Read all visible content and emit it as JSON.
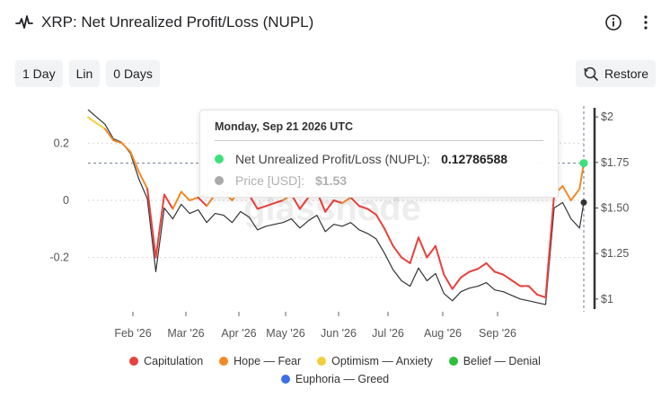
{
  "header": {
    "title": "XRP: Net Unrealized Profit/Loss (NUPL)",
    "icon": "pulse-icon"
  },
  "toolbar": {
    "interval": "1 Day",
    "scale": "Lin",
    "offset": "0 Days",
    "restore": "Restore"
  },
  "watermark": "glassnode",
  "tooltip": {
    "date": "Monday, Sep 21 2026 UTC",
    "rows": [
      {
        "label": "Net Unrealized Profit/Loss (NUPL):",
        "value": "0.12786588",
        "color": "#3de07a"
      },
      {
        "label": "Price [USD]:",
        "value": "$1.53",
        "color": "#aaaaaa"
      }
    ]
  },
  "colors": {
    "capitulation": "#e8413c",
    "hope_fear": "#f08a26",
    "optimism_anxiety": "#f2cf3a",
    "belief_denial": "#2ebf3a",
    "euphoria_greed": "#3e6ee8",
    "price": "#333333"
  },
  "chart_data": {
    "type": "line",
    "x_ticks": [
      "Feb '26",
      "Mar '26",
      "Apr '26",
      "May '26",
      "Jun '26",
      "Jul '26",
      "Aug '26",
      "Sep '26"
    ],
    "y_left": {
      "ticks": [
        "0.2",
        "0",
        "-0.2"
      ],
      "range": [
        -0.39,
        0.33
      ]
    },
    "y_right": {
      "ticks": [
        "$2",
        "$1.75",
        "$1.50",
        "$1.25",
        "$1"
      ],
      "range": [
        0.93,
        2.06
      ]
    },
    "legend": [
      "Capitulation",
      "Hope — Fear",
      "Optimism — Anxiety",
      "Belief — Denial",
      "Euphoria — Greed"
    ],
    "series": [
      {
        "name": "NUPL",
        "x": [
          0,
          4,
          8,
          12,
          16,
          20,
          24,
          28,
          32,
          36,
          40,
          44,
          48,
          52,
          56,
          60,
          64,
          68,
          72,
          76,
          80,
          84,
          88,
          92,
          96,
          100,
          104,
          108,
          112,
          116,
          120,
          124,
          128,
          132,
          136,
          140,
          144,
          148,
          152,
          156,
          160,
          164,
          168,
          172,
          176,
          180,
          184,
          188,
          192,
          196,
          200,
          204,
          208,
          212,
          216,
          220,
          224,
          228,
          232,
          234
        ],
        "y": [
          0.29,
          0.27,
          0.25,
          0.21,
          0.2,
          0.17,
          0.1,
          0.04,
          -0.2,
          0.02,
          -0.03,
          0.03,
          0.0,
          0.01,
          -0.02,
          0.02,
          0.03,
          0.0,
          0.04,
          0.02,
          -0.03,
          -0.02,
          -0.01,
          0.0,
          0.02,
          -0.03,
          0.01,
          0.03,
          -0.04,
          0.0,
          -0.01,
          0.01,
          -0.02,
          -0.03,
          -0.05,
          -0.1,
          -0.16,
          -0.2,
          -0.22,
          -0.13,
          -0.2,
          -0.16,
          -0.26,
          -0.31,
          -0.27,
          -0.25,
          -0.24,
          -0.22,
          -0.25,
          -0.26,
          -0.28,
          -0.3,
          -0.3,
          -0.33,
          -0.34,
          0.02,
          0.05,
          0.0,
          0.04,
          0.13
        ]
      },
      {
        "name": "Price",
        "x": [
          0,
          4,
          8,
          12,
          16,
          20,
          24,
          28,
          32,
          36,
          40,
          44,
          48,
          52,
          56,
          60,
          64,
          68,
          72,
          76,
          80,
          84,
          88,
          92,
          96,
          100,
          104,
          108,
          112,
          116,
          120,
          124,
          128,
          132,
          136,
          140,
          144,
          148,
          152,
          156,
          160,
          164,
          168,
          172,
          176,
          180,
          184,
          188,
          192,
          196,
          200,
          204,
          208,
          212,
          216,
          220,
          224,
          228,
          232,
          234
        ],
        "y": [
          2.04,
          2.0,
          1.96,
          1.88,
          1.86,
          1.8,
          1.66,
          1.55,
          1.15,
          1.5,
          1.44,
          1.52,
          1.47,
          1.49,
          1.42,
          1.47,
          1.46,
          1.42,
          1.48,
          1.45,
          1.38,
          1.4,
          1.41,
          1.42,
          1.44,
          1.39,
          1.43,
          1.46,
          1.37,
          1.41,
          1.4,
          1.42,
          1.38,
          1.36,
          1.33,
          1.25,
          1.16,
          1.1,
          1.07,
          1.17,
          1.1,
          1.14,
          1.03,
          0.99,
          1.04,
          1.06,
          1.07,
          1.09,
          1.05,
          1.04,
          1.02,
          1.0,
          0.99,
          0.98,
          0.97,
          1.5,
          1.53,
          1.44,
          1.39,
          1.53
        ]
      }
    ]
  }
}
